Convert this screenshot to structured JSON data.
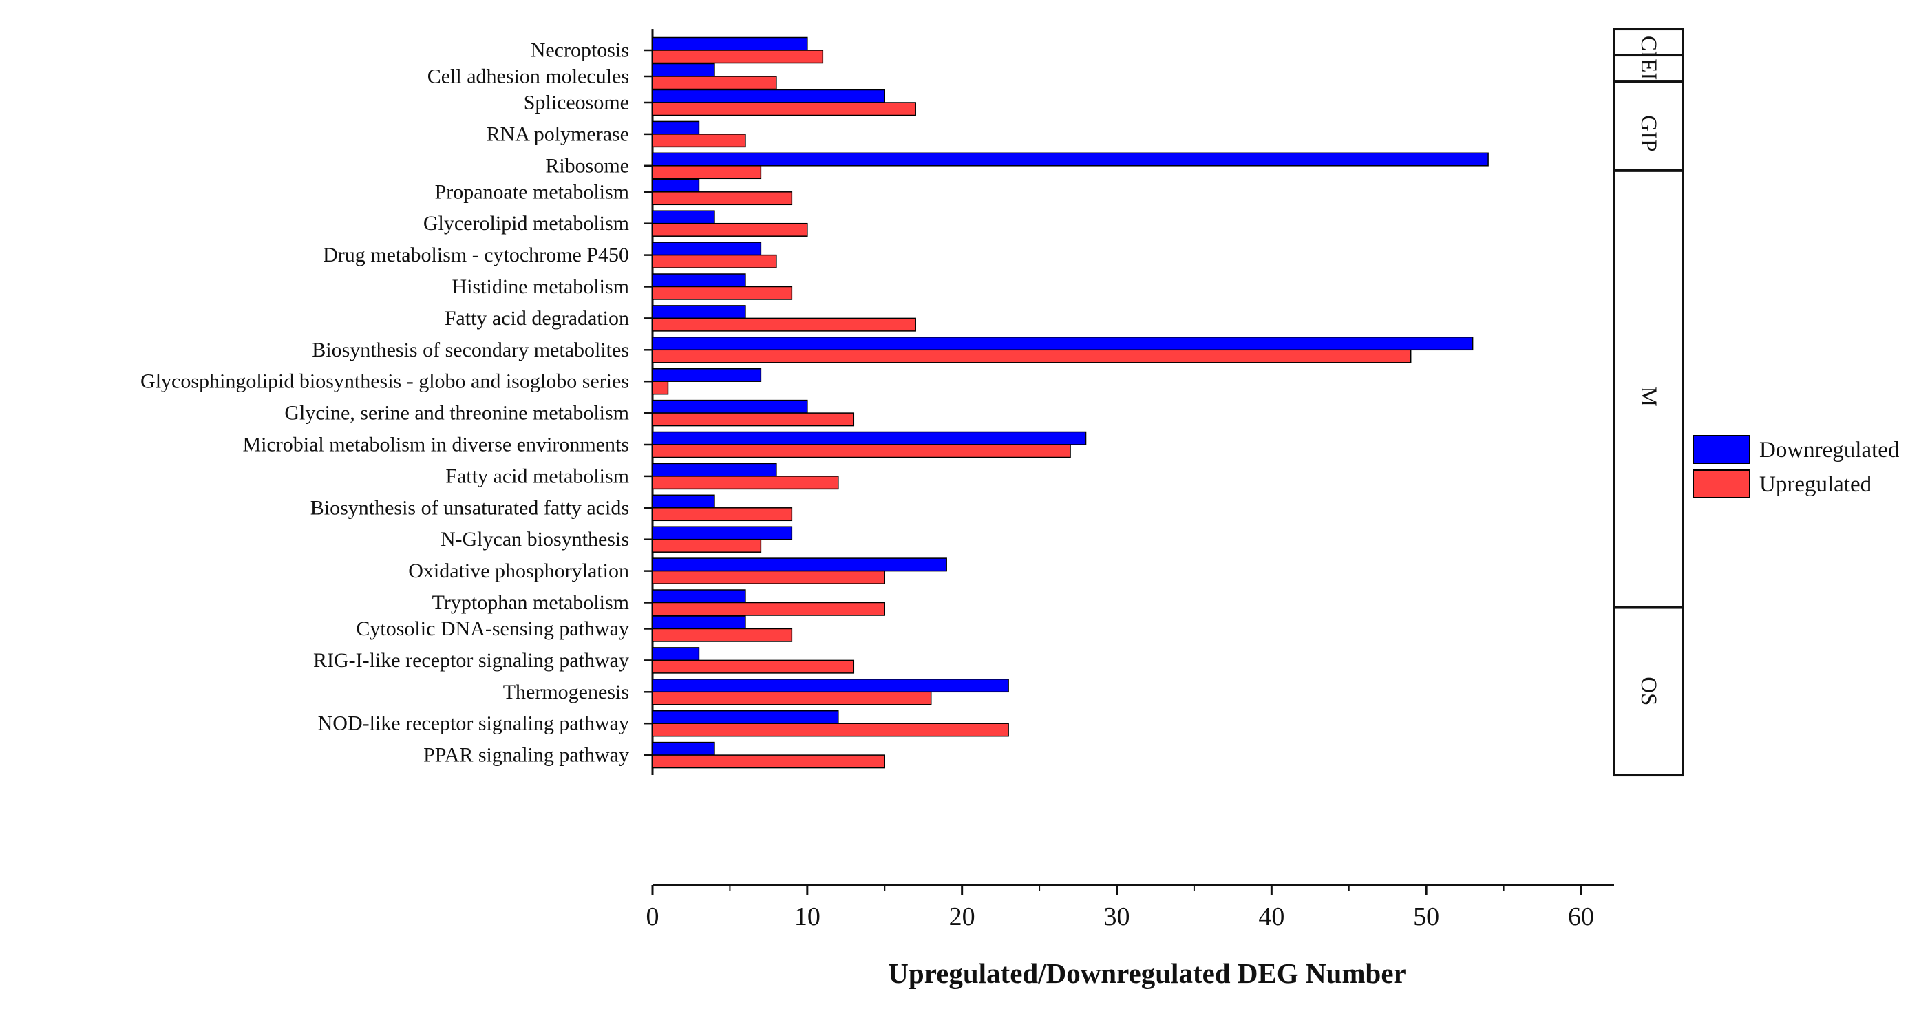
{
  "chart_data": {
    "type": "bar",
    "orientation": "horizontal",
    "xlabel": "Upregulated/Downregulated DEG Number",
    "ylabel": "",
    "xlim": [
      0,
      62
    ],
    "xticks": [
      0,
      10,
      20,
      30,
      40,
      50,
      60
    ],
    "legend_position": "right",
    "series": [
      {
        "name": "Downregulated",
        "color": "#0000ff"
      },
      {
        "name": "Upregulated",
        "color": "#ff4040"
      }
    ],
    "groups": [
      {
        "label": "CP",
        "pathways": [
          {
            "name": "Necroptosis",
            "down": 10,
            "up": 11
          }
        ]
      },
      {
        "label": "EIP",
        "pathways": [
          {
            "name": "Cell adhesion molecules",
            "down": 4,
            "up": 8
          }
        ]
      },
      {
        "label": "GIP",
        "pathways": [
          {
            "name": "Spliceosome",
            "down": 15,
            "up": 17
          },
          {
            "name": "RNA polymerase",
            "down": 3,
            "up": 6
          },
          {
            "name": "Ribosome",
            "down": 54,
            "up": 7
          }
        ]
      },
      {
        "label": "M",
        "pathways": [
          {
            "name": "Propanoate metabolism",
            "down": 3,
            "up": 9
          },
          {
            "name": "Glycerolipid metabolism",
            "down": 4,
            "up": 10
          },
          {
            "name": "Drug metabolism - cytochrome P450",
            "down": 7,
            "up": 8
          },
          {
            "name": "Histidine metabolism",
            "down": 6,
            "up": 9
          },
          {
            "name": "Fatty acid degradation",
            "down": 6,
            "up": 17
          },
          {
            "name": "Biosynthesis of secondary metabolites",
            "down": 53,
            "up": 49
          },
          {
            "name": "Glycosphingolipid biosynthesis - globo and isoglobo series",
            "down": 7,
            "up": 1
          },
          {
            "name": "Glycine, serine and threonine metabolism",
            "down": 10,
            "up": 13
          },
          {
            "name": "Microbial metabolism in diverse environments",
            "down": 28,
            "up": 27
          },
          {
            "name": "Fatty acid metabolism",
            "down": 8,
            "up": 12
          },
          {
            "name": "Biosynthesis of unsaturated fatty acids",
            "down": 4,
            "up": 9
          },
          {
            "name": "N-Glycan biosynthesis",
            "down": 9,
            "up": 7
          },
          {
            "name": "Oxidative phosphorylation",
            "down": 19,
            "up": 15
          },
          {
            "name": "Tryptophan metabolism",
            "down": 6,
            "up": 15
          }
        ]
      },
      {
        "label": "OS",
        "pathways": [
          {
            "name": "Cytosolic DNA-sensing pathway",
            "down": 6,
            "up": 9
          },
          {
            "name": "RIG-I-like receptor signaling pathway",
            "down": 3,
            "up": 13
          },
          {
            "name": "Thermogenesis",
            "down": 23,
            "up": 18
          },
          {
            "name": "NOD-like receptor signaling pathway",
            "down": 12,
            "up": 23
          },
          {
            "name": "PPAR signaling pathway",
            "down": 4,
            "up": 15
          }
        ]
      }
    ]
  }
}
